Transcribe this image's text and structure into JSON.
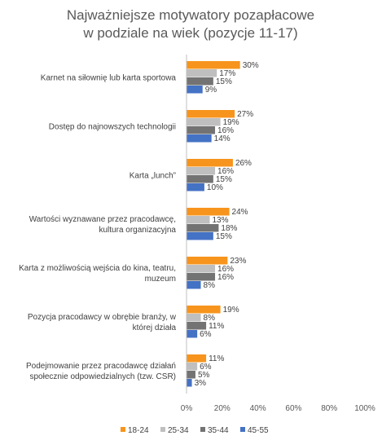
{
  "chart_data": {
    "type": "bar",
    "orientation": "horizontal",
    "title_lines": [
      "Najważniejsze motywatory pozapłacowe",
      "w podziale na wiek (pozycje 11-17)"
    ],
    "categories": [
      [
        "Karnet na siłownię lub karta sportowa"
      ],
      [
        "Dostęp do najnowszych technologii"
      ],
      [
        "Karta „lunch”"
      ],
      [
        "Wartości wyznawane przez pracodawcę,",
        "kultura organizacyjna"
      ],
      [
        "Karta z możliwością wejścia do kina, teatru,",
        "muzeum"
      ],
      [
        "Pozycja pracodawcy w obrębie branży, w",
        "której działa"
      ],
      [
        "Podejmowanie przez pracodawcę działań",
        "społecznie odpowiedzialnych (tzw. CSR)"
      ]
    ],
    "series": [
      {
        "name": "18-24",
        "color": "#F7941D",
        "values": [
          30,
          27,
          26,
          24,
          23,
          19,
          11
        ]
      },
      {
        "name": "25-34",
        "color": "#BFBFBF",
        "values": [
          17,
          19,
          16,
          13,
          16,
          8,
          6
        ]
      },
      {
        "name": "35-44",
        "color": "#737373",
        "values": [
          15,
          16,
          15,
          18,
          16,
          11,
          5
        ]
      },
      {
        "name": "45-55",
        "color": "#4472C4",
        "values": [
          9,
          14,
          10,
          15,
          8,
          6,
          3
        ]
      }
    ],
    "xlim": [
      0,
      100
    ],
    "xticks": [
      "0%",
      "20%",
      "40%",
      "60%",
      "80%",
      "100%"
    ],
    "value_suffix": "%",
    "legend_position": "bottom",
    "grid": false
  }
}
